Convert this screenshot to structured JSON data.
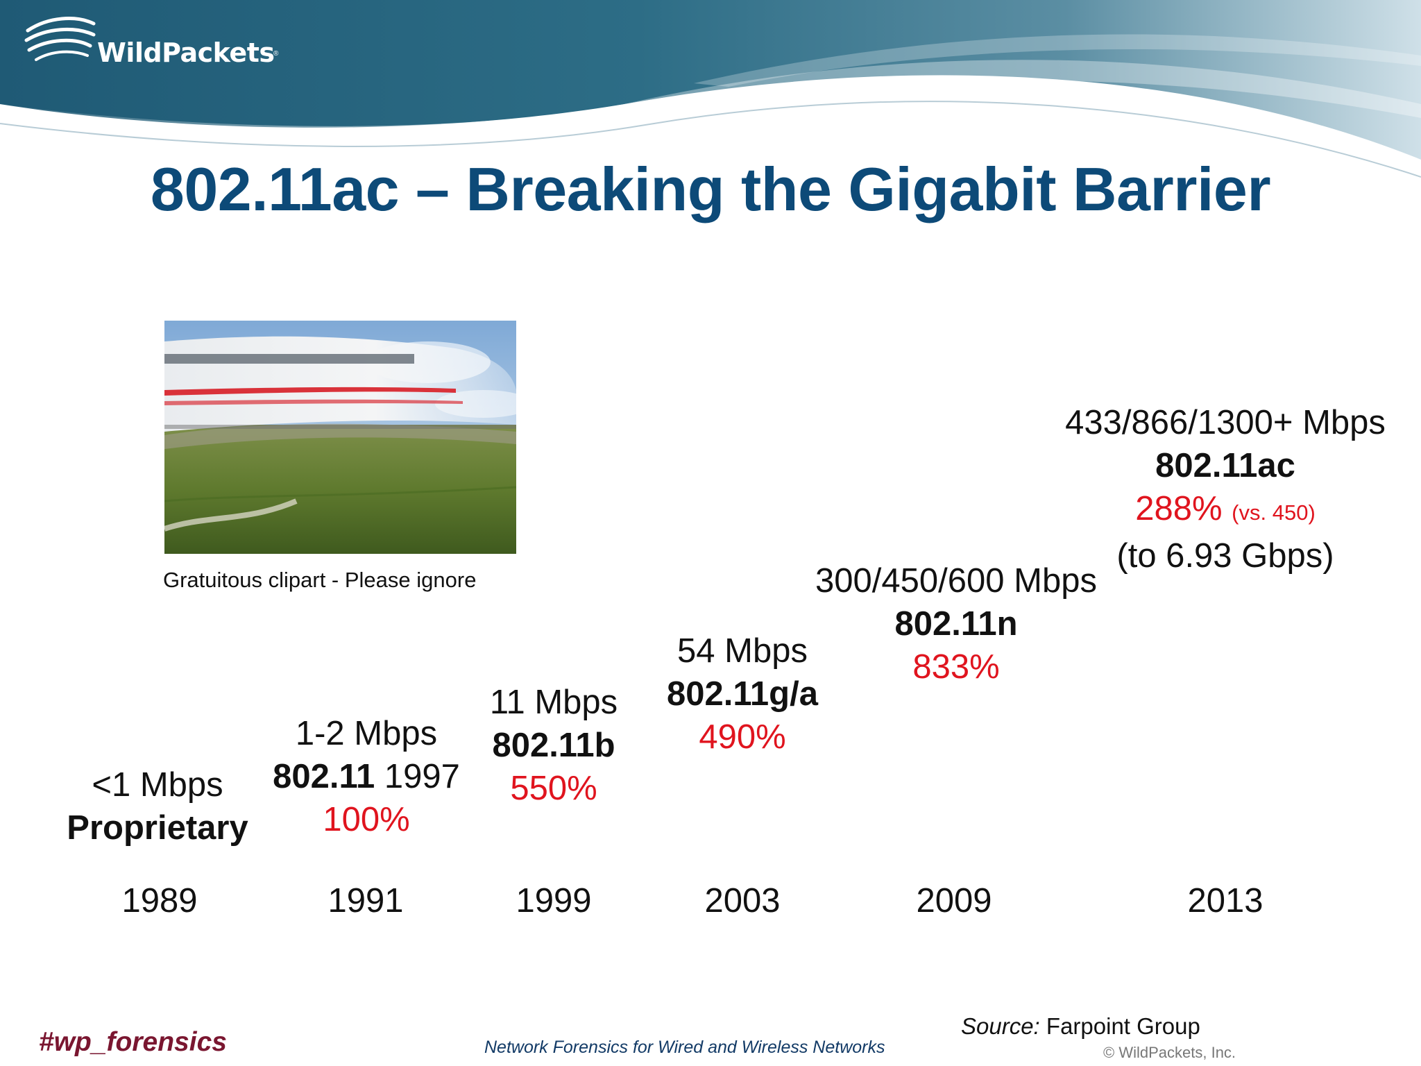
{
  "brand": {
    "logo_text": "WildPackets",
    "logo_tm": "®"
  },
  "slide": {
    "title": "802.11ac – Breaking the Gigabit Barrier"
  },
  "clipart": {
    "caption": "Gratuitous clipart - Please ignore"
  },
  "milestones": [
    {
      "speed": "<1 Mbps",
      "standard": "Proprietary",
      "year": "1989"
    },
    {
      "speed": "1-2 Mbps",
      "standard": "802.11",
      "standard_year": "1997",
      "growth": "100%",
      "year": "1991"
    },
    {
      "speed": "11 Mbps",
      "standard": "802.11b",
      "growth": "550%",
      "year": "1999"
    },
    {
      "speed": "54 Mbps",
      "standard": "802.11g/a",
      "growth": "490%",
      "year": "2003"
    },
    {
      "speed": "300/450/600 Mbps",
      "standard": "802.11n",
      "growth": "833%",
      "year": "2009"
    },
    {
      "speed": "433/866/1300+ Mbps",
      "standard": "802.11ac",
      "growth": "288%",
      "growth_note": "(vs. 450)",
      "extra": "(to 6.93 Gbps)",
      "year": "2013"
    }
  ],
  "footer": {
    "hashtag": "#wp_forensics",
    "tagline": "Network Forensics for Wired and Wireless Networks",
    "source_label": "Source:",
    "source_value": "Farpoint Group",
    "copyright": "©  WildPackets, Inc."
  }
}
